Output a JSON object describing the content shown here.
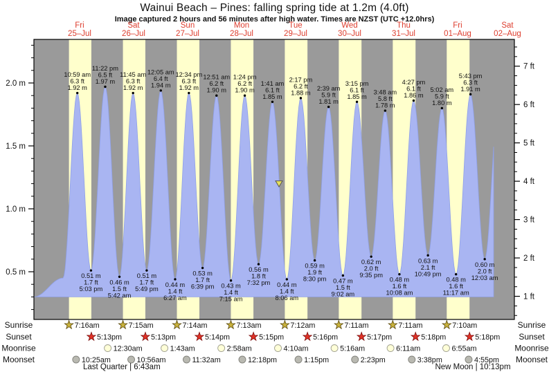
{
  "title": "Wainui Beach – Pines: falling  spring tide at 1.2m (4.0ft)",
  "subtitle": "Image captured 2 hours and 56 minutes after high water. Times are NZST (UTC +12.0hrs)",
  "colors": {
    "night_bg": "#9a9a9a",
    "day_band": "#ffffcc",
    "tide_fill": "#a9b5f2",
    "tide_edge": "#8fa0e8",
    "day_label": "#dd3d2e",
    "text": "#111111",
    "sunrise_star": "#c9b23c",
    "sunrise_star_edge": "#55440a",
    "sunset_star": "#e03226",
    "sunset_star_edge": "#7a0c0c",
    "moonrise_fill": "#ffffd8",
    "moonrise_edge": "#a0a090",
    "moonset_fill": "#b9b9b1",
    "moonset_edge": "#80807a",
    "marker_fill": "#e6e05a",
    "marker_edge": "#555555"
  },
  "chart_data": {
    "type": "area",
    "title": "Wainui Beach – Pines tide curve",
    "baseline_m": 0.3,
    "ylim_m": [
      0.12,
      2.35
    ],
    "y_axis_left": {
      "unit": "m",
      "major_values": [
        0.5,
        1.0,
        1.5,
        2.0
      ],
      "major_labels": [
        "0.5 m",
        "1.0 m",
        "1.5 m",
        "2.0 m"
      ]
    },
    "y_axis_right": {
      "unit": "ft",
      "major_values": [
        1,
        2,
        3,
        4,
        5,
        6,
        7
      ],
      "major_labels": [
        "1 ft",
        "2 ft",
        "3 ft",
        "4 ft",
        "5 ft",
        "6 ft",
        "7 ft"
      ]
    },
    "days": [
      {
        "dow": "Fri",
        "date": "25–Jul"
      },
      {
        "dow": "Sat",
        "date": "26–Jul"
      },
      {
        "dow": "Sun",
        "date": "27–Jul"
      },
      {
        "dow": "Mon",
        "date": "28–Jul"
      },
      {
        "dow": "Tue",
        "date": "29–Jul"
      },
      {
        "dow": "Wed",
        "date": "30–Jul"
      },
      {
        "dow": "Thu",
        "date": "31–Jul"
      },
      {
        "dow": "Fri",
        "date": "01–Aug"
      },
      {
        "dow": "Sat",
        "date": "02–Aug"
      }
    ],
    "tide_events": [
      {
        "type": "high",
        "day": 0,
        "time": "10:59 am",
        "ft_label": "6.3 ft",
        "m_label": "1.92 m"
      },
      {
        "type": "low",
        "day": 0,
        "time": "5:03 pm",
        "ft_label": "1.7 ft",
        "m_label": "0.51 m"
      },
      {
        "type": "high",
        "day": 0,
        "time": "11:22 pm",
        "ft_label": "6.5 ft",
        "m_label": "1.97 m"
      },
      {
        "type": "low",
        "day": 1,
        "time": "5:42 am",
        "ft_label": "1.5 ft",
        "m_label": "0.46 m"
      },
      {
        "type": "high",
        "day": 1,
        "time": "11:45 am",
        "ft_label": "6.3 ft",
        "m_label": "1.92 m"
      },
      {
        "type": "low",
        "day": 1,
        "time": "5:49 pm",
        "ft_label": "1.7 ft",
        "m_label": "0.51 m"
      },
      {
        "type": "high",
        "day": 2,
        "time": "12:05 am",
        "ft_label": "6.4 ft",
        "m_label": "1.94 m"
      },
      {
        "type": "low",
        "day": 2,
        "time": "6:27 am",
        "ft_label": "1.4 ft",
        "m_label": "0.44 m"
      },
      {
        "type": "high",
        "day": 2,
        "time": "12:34 pm",
        "ft_label": "6.3 ft",
        "m_label": "1.92 m"
      },
      {
        "type": "low",
        "day": 2,
        "time": "6:39 pm",
        "ft_label": "1.7 ft",
        "m_label": "0.53 m"
      },
      {
        "type": "high",
        "day": 3,
        "time": "12:51 am",
        "ft_label": "6.2 ft",
        "m_label": "1.90 m"
      },
      {
        "type": "low",
        "day": 3,
        "time": "7:15 am",
        "ft_label": "1.4 ft",
        "m_label": "0.43 m"
      },
      {
        "type": "high",
        "day": 3,
        "time": "1:24 pm",
        "ft_label": "6.2 ft",
        "m_label": "1.90 m"
      },
      {
        "type": "low",
        "day": 3,
        "time": "7:32 pm",
        "ft_label": "1.8 ft",
        "m_label": "0.56 m"
      },
      {
        "type": "high",
        "day": 4,
        "time": "1:41 am",
        "ft_label": "6.1 ft",
        "m_label": "1.85 m"
      },
      {
        "type": "low",
        "day": 4,
        "time": "8:06 am",
        "ft_label": "1.4 ft",
        "m_label": "0.44 m"
      },
      {
        "type": "high",
        "day": 4,
        "time": "2:17 pm",
        "ft_label": "6.2 ft",
        "m_label": "1.88 m"
      },
      {
        "type": "low",
        "day": 4,
        "time": "8:30 pm",
        "ft_label": "1.9 ft",
        "m_label": "0.59 m"
      },
      {
        "type": "high",
        "day": 5,
        "time": "2:39 am",
        "ft_label": "5.9 ft",
        "m_label": "1.81 m"
      },
      {
        "type": "low",
        "day": 5,
        "time": "9:02 am",
        "ft_label": "1.5 ft",
        "m_label": "0.47 m"
      },
      {
        "type": "high",
        "day": 5,
        "time": "3:15 pm",
        "ft_label": "6.1 ft",
        "m_label": "1.85 m"
      },
      {
        "type": "low",
        "day": 5,
        "time": "9:35 pm",
        "ft_label": "2.0 ft",
        "m_label": "0.62 m"
      },
      {
        "type": "high",
        "day": 6,
        "time": "3:48 am",
        "ft_label": "5.8 ft",
        "m_label": "1.78 m"
      },
      {
        "type": "low",
        "day": 6,
        "time": "10:08 am",
        "ft_label": "1.6 ft",
        "m_label": "0.48 m"
      },
      {
        "type": "high",
        "day": 6,
        "time": "4:27 pm",
        "ft_label": "6.1 ft",
        "m_label": "1.86 m"
      },
      {
        "type": "low",
        "day": 6,
        "time": "10:49 pm",
        "ft_label": "2.1 ft",
        "m_label": "0.63 m"
      },
      {
        "type": "high",
        "day": 7,
        "time": "5:02 am",
        "ft_label": "5.9 ft",
        "m_label": "1.80 m"
      },
      {
        "type": "low",
        "day": 7,
        "time": "11:17 am",
        "ft_label": "1.6 ft",
        "m_label": "0.48 m"
      },
      {
        "type": "high",
        "day": 7,
        "time": "5:43 pm",
        "ft_label": "6.3 ft",
        "m_label": "1.91 m"
      },
      {
        "type": "low",
        "day": 8,
        "time": "12:03 am",
        "ft_label": "2.0 ft",
        "m_label": "0.60 m"
      }
    ],
    "current_level_marker": {
      "day": 4,
      "time": "4:37 am",
      "height_m": 1.2
    }
  },
  "astro": {
    "rows": [
      {
        "label": "Sunrise",
        "icon": "sunrise-star",
        "events": [
          {
            "day": 0,
            "time": "7:16am"
          },
          {
            "day": 1,
            "time": "7:15am"
          },
          {
            "day": 2,
            "time": "7:14am"
          },
          {
            "day": 3,
            "time": "7:13am"
          },
          {
            "day": 4,
            "time": "7:12am"
          },
          {
            "day": 5,
            "time": "7:11am"
          },
          {
            "day": 6,
            "time": "7:11am"
          },
          {
            "day": 7,
            "time": "7:10am"
          }
        ]
      },
      {
        "label": "Sunset",
        "icon": "sunset-star",
        "events": [
          {
            "day": 0,
            "time": "5:13pm"
          },
          {
            "day": 1,
            "time": "5:13pm"
          },
          {
            "day": 2,
            "time": "5:14pm"
          },
          {
            "day": 3,
            "time": "5:15pm"
          },
          {
            "day": 4,
            "time": "5:16pm"
          },
          {
            "day": 5,
            "time": "5:17pm"
          },
          {
            "day": 6,
            "time": "5:18pm"
          },
          {
            "day": 7,
            "time": "5:18pm"
          }
        ]
      },
      {
        "label": "Moonrise",
        "icon": "moonrise-circle",
        "events": [
          {
            "day": 1,
            "time": "12:30am"
          },
          {
            "day": 2,
            "time": "1:43am"
          },
          {
            "day": 3,
            "time": "2:58am"
          },
          {
            "day": 4,
            "time": "4:10am"
          },
          {
            "day": 5,
            "time": "5:16am"
          },
          {
            "day": 6,
            "time": "6:11am"
          },
          {
            "day": 7,
            "time": "6:55am"
          }
        ]
      },
      {
        "label": "Moonset",
        "icon": "moonset-circle",
        "events": [
          {
            "day": 0,
            "time": "10:25am"
          },
          {
            "day": 1,
            "time": "10:56am"
          },
          {
            "day": 2,
            "time": "11:32am"
          },
          {
            "day": 3,
            "time": "12:18pm"
          },
          {
            "day": 4,
            "time": "1:15pm"
          },
          {
            "day": 5,
            "time": "2:23pm"
          },
          {
            "day": 6,
            "time": "3:38pm"
          },
          {
            "day": 7,
            "time": "4:55pm"
          }
        ]
      }
    ],
    "notes": [
      {
        "label": "Last Quarter | 6:43am",
        "day": 1,
        "time": "6:43am"
      },
      {
        "label": "New Moon | 10:13pm",
        "day": 7,
        "time": "10:13pm"
      }
    ]
  }
}
